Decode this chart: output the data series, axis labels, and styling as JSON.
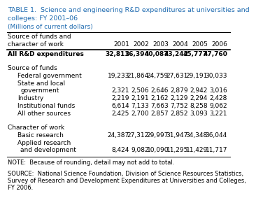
{
  "title_line1": "TABLE 1.  Science and engineering R&D expenditures at universities and",
  "title_line2": "colleges: FY 2001–06",
  "subtitle": "(Millions of current dollars)",
  "years": [
    "2001",
    "2002",
    "2003",
    "2004",
    "2005",
    "2006"
  ],
  "all_rd": [
    "32,811",
    "36,394",
    "40,087",
    "43,242",
    "45,777",
    "47,760"
  ],
  "federal": [
    "19,233",
    "21,864",
    "24,759",
    "27,631",
    "29,191",
    "30,033"
  ],
  "state_local": [
    "2,321",
    "2,506",
    "2,646",
    "2,879",
    "2,942",
    "3,016"
  ],
  "industry": [
    "2,219",
    "2,191",
    "2,162",
    "2,129",
    "2,294",
    "2,428"
  ],
  "institutional": [
    "6,614",
    "7,133",
    "7,663",
    "7,752",
    "8,258",
    "9,062"
  ],
  "other_sources": [
    "2,425",
    "2,700",
    "2,857",
    "2,852",
    "3,093",
    "3,221"
  ],
  "basic_research": [
    "24,387",
    "27,312",
    "29,997",
    "31,947",
    "34,348",
    "36,044"
  ],
  "applied_dev": [
    "8,424",
    "9,082",
    "10,090",
    "11,295",
    "11,429",
    "11,717"
  ],
  "note": "NOTE:  Because of rounding, detail may not add to total.",
  "source1": "SOURCE:  National Science Foundation, Division of Science Resources Statistics,",
  "source2": "Survey of Research and Development Expenditures at Universities and Colleges,",
  "source3": "FY 2006.",
  "title_color": "#1F6BB0",
  "subtitle_color": "#1F6BB0",
  "text_color": "#000000",
  "bg_color": "#FFFFFF",
  "fs": 6.5,
  "fs_title": 6.8
}
